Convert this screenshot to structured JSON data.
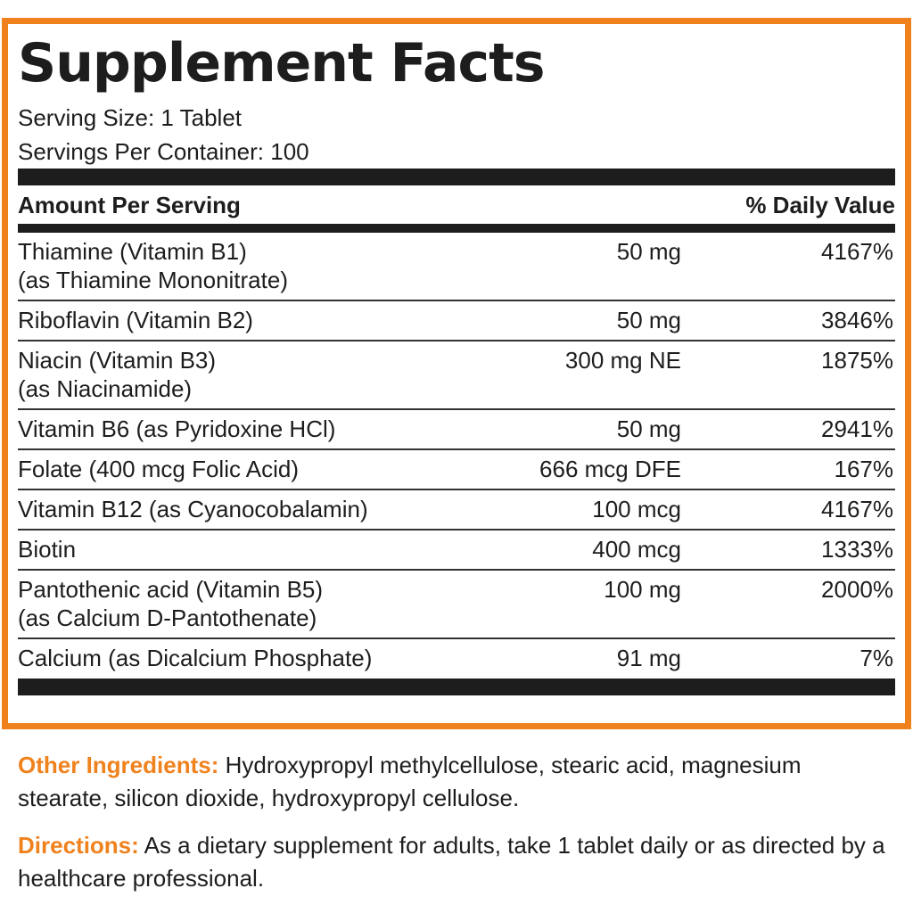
{
  "title": "Supplement Facts",
  "serving_size": "Serving Size: 1 Tablet",
  "servings_per_container": "Servings Per Container: 100",
  "header": {
    "amount": "Amount Per Serving",
    "dv": "% Daily Value"
  },
  "rows": [
    {
      "name": "Thiamine (Vitamin B1)",
      "sub": "(as Thiamine Mononitrate)",
      "amount": "50 mg",
      "dv": "4167%"
    },
    {
      "name": "Riboflavin (Vitamin B2)",
      "sub": "",
      "amount": "50 mg",
      "dv": "3846%"
    },
    {
      "name": "Niacin (Vitamin B3)",
      "sub": "(as Niacinamide)",
      "amount": "300 mg NE",
      "dv": "1875%"
    },
    {
      "name": "Vitamin B6 (as Pyridoxine HCl)",
      "sub": "",
      "amount": "50 mg",
      "dv": "2941%"
    },
    {
      "name": "Folate (400 mcg Folic Acid)",
      "sub": "",
      "amount": "666 mcg DFE",
      "dv": "167%"
    },
    {
      "name": "Vitamin B12 (as Cyanocobalamin)",
      "sub": "",
      "amount": "100 mcg",
      "dv": "4167%"
    },
    {
      "name": "Biotin",
      "sub": "",
      "amount": "400 mcg",
      "dv": "1333%"
    },
    {
      "name": "Pantothenic acid (Vitamin B5)",
      "sub": "(as Calcium D-Pantothenate)",
      "amount": "100 mg",
      "dv": "2000%"
    },
    {
      "name": "Calcium (as Dicalcium Phosphate)",
      "sub": "",
      "amount": "91 mg",
      "dv": "7%"
    }
  ],
  "other_ingredients": {
    "label": "Other Ingredients:",
    "text": " Hydroxypropyl methylcellulose, stearic acid, magnesium stearate, silicon dioxide, hydroxypropyl cellulose."
  },
  "directions": {
    "label": "Directions:",
    "text": " As a dietary supplement for adults, take 1 tablet daily or as directed by a healthcare professional."
  },
  "colors": {
    "accent": "#f0821e",
    "text": "#1d1d1d"
  }
}
